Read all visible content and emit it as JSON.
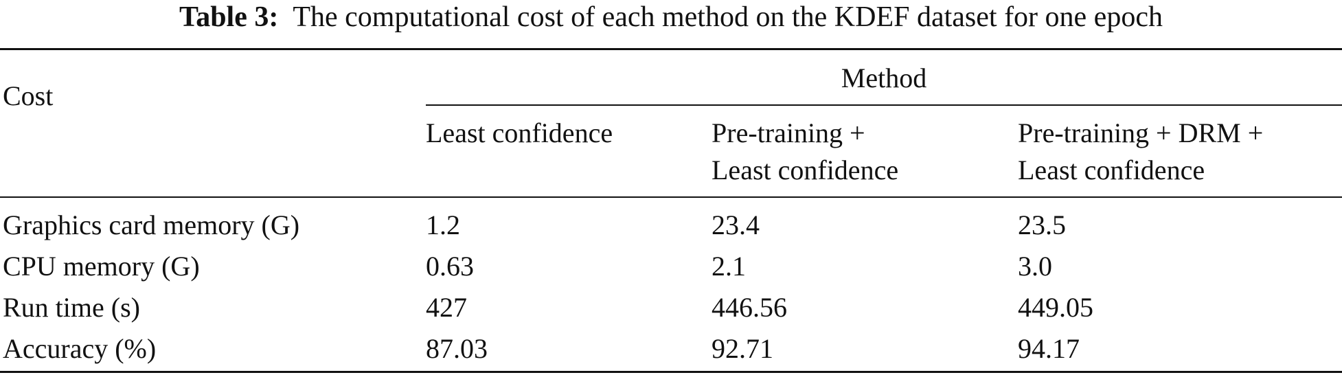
{
  "caption": {
    "label": "Table 3:",
    "text": "The computational cost of each method on the KDEF dataset for one epoch"
  },
  "header": {
    "cost": "Cost",
    "method": "Method",
    "columns": [
      {
        "line1": "Least confidence",
        "line2": ""
      },
      {
        "line1": "Pre-training +",
        "line2": "Least confidence"
      },
      {
        "line1": "Pre-training + DRM +",
        "line2": "Least confidence"
      }
    ]
  },
  "rows": [
    {
      "label": "Graphics card memory (G)",
      "values": [
        "1.2",
        "23.4",
        "23.5"
      ]
    },
    {
      "label": "CPU memory (G)",
      "values": [
        "0.63",
        "2.1",
        "3.0"
      ]
    },
    {
      "label": "Run time (s)",
      "values": [
        "427",
        "446.56",
        "449.05"
      ]
    },
    {
      "label": "Accuracy (%)",
      "values": [
        "87.03",
        "92.71",
        "94.17"
      ]
    }
  ]
}
